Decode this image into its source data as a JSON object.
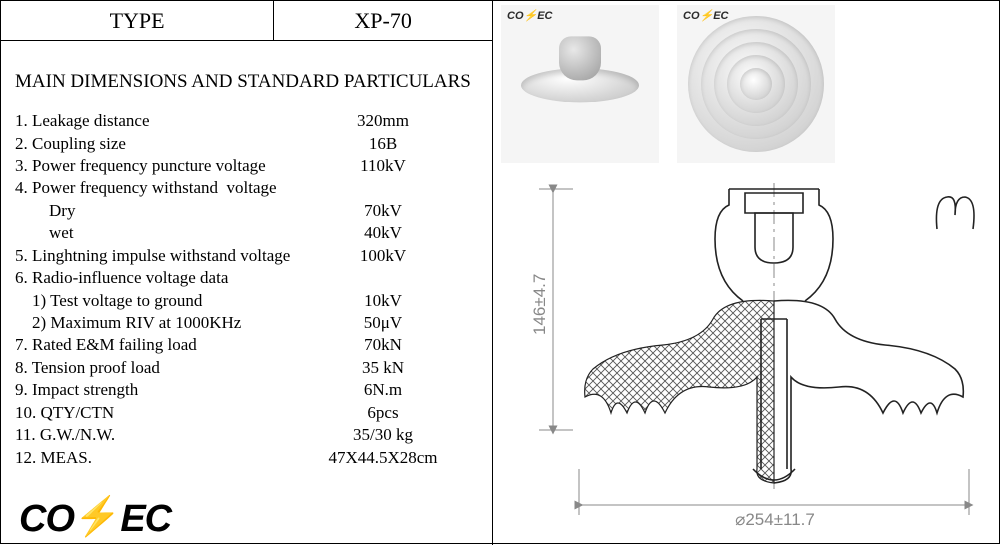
{
  "header": {
    "type_label": "TYPE",
    "model": "XP-70"
  },
  "title": "MAIN DIMENSIONS AND STANDARD PARTICULARS",
  "specs": [
    {
      "label": "1. Leakage distance",
      "value": "320mm"
    },
    {
      "label": "2. Coupling size",
      "value": "16B"
    },
    {
      "label": "3. Power frequency puncture voltage",
      "value": "110kV"
    },
    {
      "label": "4. Power frequency withstand  voltage",
      "value": ""
    },
    {
      "label": "        Dry",
      "value": "70kV"
    },
    {
      "label": "        wet",
      "value": "40kV"
    },
    {
      "label": "5. Linghtning impulse withstand voltage",
      "value": "100kV"
    },
    {
      "label": "6. Radio-influence voltage data",
      "value": ""
    },
    {
      "label": "    1) Test voltage to ground",
      "value": "10kV"
    },
    {
      "label": "    2) Maximum RIV at 1000KHz",
      "value": "50μV"
    },
    {
      "label": "7. Rated E&M failing load",
      "value": "70kN"
    },
    {
      "label": "8. Tension proof load",
      "value": "35 kN"
    },
    {
      "label": "9. Impact strength",
      "value": "6N.m"
    },
    {
      "label": "10. QTY/CTN",
      "value": "6pcs"
    },
    {
      "label": "11. G.W./N.W.",
      "value": "35/30 kg"
    },
    {
      "label": "12. MEAS.",
      "value": "47X44.5X28cm"
    }
  ],
  "logo": {
    "text_a": "CO",
    "bolt": "⚡",
    "text_b": "EC"
  },
  "photos": {
    "brand": "CO⚡EC",
    "ring_sizes": [
      136,
      110,
      84,
      58,
      32
    ]
  },
  "drawing": {
    "height_dim": "146±4.7",
    "diameter_dim": "⌀254±11.7",
    "colors": {
      "outline": "#222222",
      "dim": "#888888",
      "hatch": "#333333",
      "bg": "#ffffff"
    }
  }
}
